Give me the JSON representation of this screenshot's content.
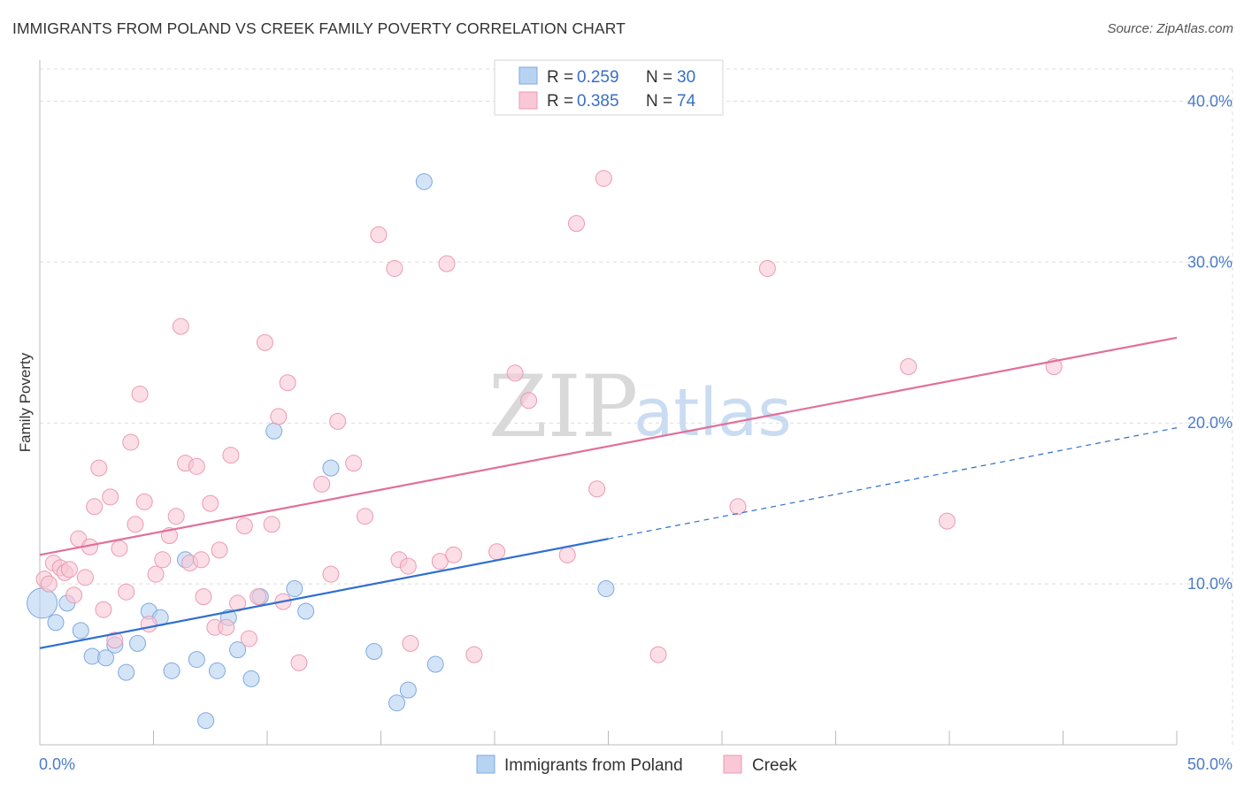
{
  "title": "IMMIGRANTS FROM POLAND VS CREEK FAMILY POVERTY CORRELATION CHART",
  "source": "Source: ZipAtlas.com",
  "watermark": {
    "zip": "ZIP",
    "atlas": "atlas"
  },
  "colors": {
    "blue_fill": "#b8d2f2",
    "blue_stroke": "#7ea9e0",
    "blue_line": "#2f6fcf",
    "pink_fill": "#f8c8d6",
    "pink_stroke": "#ec9ab3",
    "pink_line": "#e0709a",
    "grid": "#dddddd",
    "tick_text": "#4a7cc9"
  },
  "legend": {
    "rows": [
      {
        "r_label": "R = ",
        "r_value": "0.259",
        "n_label": "N = ",
        "n_value": "30"
      },
      {
        "r_label": "R = ",
        "r_value": "0.385",
        "n_label": "N = ",
        "n_value": "74"
      }
    ]
  },
  "chart_data": {
    "type": "scatter",
    "title": "IMMIGRANTS FROM POLAND VS CREEK FAMILY POVERTY CORRELATION CHART",
    "xlabel": "",
    "ylabel": "Family Poverty",
    "xlim": [
      0,
      50
    ],
    "ylim": [
      0,
      42
    ],
    "x_tick_labels": [
      "0.0%",
      "50.0%"
    ],
    "y_ticks": [
      10,
      20,
      30,
      40
    ],
    "y_tick_labels": [
      "10.0%",
      "20.0%",
      "30.0%",
      "40.0%"
    ],
    "series": [
      {
        "name": "Immigrants from Poland",
        "R": 0.259,
        "N": 30,
        "trend": {
          "x0": 0,
          "y0": 6.0,
          "x1": 25,
          "y1": 12.8,
          "dashed_to_x": 50,
          "dashed_to_y": 19.7
        },
        "points": [
          [
            0.1,
            8.8
          ],
          [
            1.2,
            8.8
          ],
          [
            0.7,
            7.6
          ],
          [
            1.8,
            7.1
          ],
          [
            2.3,
            5.5
          ],
          [
            2.9,
            5.4
          ],
          [
            3.3,
            6.2
          ],
          [
            3.8,
            4.5
          ],
          [
            4.3,
            6.3
          ],
          [
            4.8,
            8.3
          ],
          [
            5.3,
            7.9
          ],
          [
            5.8,
            4.6
          ],
          [
            6.4,
            11.5
          ],
          [
            6.9,
            5.3
          ],
          [
            7.3,
            1.5
          ],
          [
            7.8,
            4.6
          ],
          [
            8.3,
            7.9
          ],
          [
            8.7,
            5.9
          ],
          [
            9.3,
            4.1
          ],
          [
            9.7,
            9.2
          ],
          [
            10.3,
            19.5
          ],
          [
            11.2,
            9.7
          ],
          [
            11.7,
            8.3
          ],
          [
            12.8,
            17.2
          ],
          [
            14.7,
            5.8
          ],
          [
            15.7,
            2.6
          ],
          [
            16.2,
            3.4
          ],
          [
            16.9,
            35.0
          ],
          [
            17.4,
            5.0
          ],
          [
            24.9,
            9.7
          ]
        ]
      },
      {
        "name": "Creek",
        "R": 0.385,
        "N": 74,
        "trend": {
          "x0": 0,
          "y0": 11.8,
          "x1": 50,
          "y1": 25.3
        },
        "points": [
          [
            0.2,
            10.3
          ],
          [
            0.4,
            10.0
          ],
          [
            0.6,
            11.3
          ],
          [
            0.9,
            11.0
          ],
          [
            1.1,
            10.7
          ],
          [
            1.3,
            10.9
          ],
          [
            1.5,
            9.3
          ],
          [
            1.7,
            12.8
          ],
          [
            2.0,
            10.4
          ],
          [
            2.2,
            12.3
          ],
          [
            2.4,
            14.8
          ],
          [
            2.6,
            17.2
          ],
          [
            2.8,
            8.4
          ],
          [
            3.1,
            15.4
          ],
          [
            3.3,
            6.5
          ],
          [
            3.5,
            12.2
          ],
          [
            3.8,
            9.5
          ],
          [
            4.0,
            18.8
          ],
          [
            4.2,
            13.7
          ],
          [
            4.4,
            21.8
          ],
          [
            4.6,
            15.1
          ],
          [
            4.8,
            7.5
          ],
          [
            5.1,
            10.6
          ],
          [
            5.4,
            11.5
          ],
          [
            5.7,
            13.0
          ],
          [
            6.0,
            14.2
          ],
          [
            6.2,
            26.0
          ],
          [
            6.4,
            17.5
          ],
          [
            6.6,
            11.3
          ],
          [
            6.9,
            17.3
          ],
          [
            7.1,
            11.5
          ],
          [
            7.2,
            9.2
          ],
          [
            7.5,
            15.0
          ],
          [
            7.7,
            7.3
          ],
          [
            7.9,
            12.1
          ],
          [
            8.2,
            7.3
          ],
          [
            8.4,
            18.0
          ],
          [
            8.7,
            8.8
          ],
          [
            9.0,
            13.6
          ],
          [
            9.2,
            6.6
          ],
          [
            9.6,
            9.2
          ],
          [
            9.9,
            25.0
          ],
          [
            10.2,
            13.7
          ],
          [
            10.5,
            20.4
          ],
          [
            10.7,
            8.9
          ],
          [
            10.9,
            22.5
          ],
          [
            11.4,
            5.1
          ],
          [
            12.4,
            16.2
          ],
          [
            12.8,
            10.6
          ],
          [
            13.1,
            20.1
          ],
          [
            13.8,
            17.5
          ],
          [
            14.3,
            14.2
          ],
          [
            14.9,
            31.7
          ],
          [
            15.6,
            29.6
          ],
          [
            15.8,
            11.5
          ],
          [
            16.2,
            11.1
          ],
          [
            16.3,
            6.3
          ],
          [
            17.6,
            11.4
          ],
          [
            17.9,
            29.9
          ],
          [
            18.2,
            11.8
          ],
          [
            19.1,
            5.6
          ],
          [
            20.1,
            12.0
          ],
          [
            20.9,
            23.1
          ],
          [
            21.5,
            21.4
          ],
          [
            23.2,
            11.8
          ],
          [
            23.6,
            32.4
          ],
          [
            24.5,
            15.9
          ],
          [
            24.8,
            35.2
          ],
          [
            27.2,
            5.6
          ],
          [
            30.7,
            14.8
          ],
          [
            32.0,
            29.6
          ],
          [
            38.2,
            23.5
          ],
          [
            39.9,
            13.9
          ],
          [
            44.6,
            23.5
          ]
        ]
      }
    ]
  }
}
